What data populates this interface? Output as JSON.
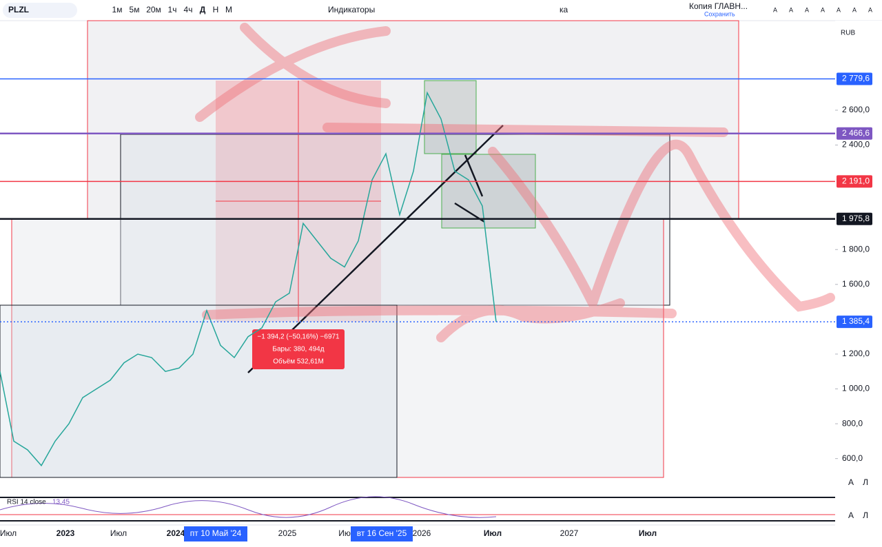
{
  "toolbar": {
    "symbol": "PLZL",
    "intervals": [
      "1м",
      "5м",
      "20м",
      "1ч",
      "4ч",
      "Д",
      "Н",
      "М"
    ],
    "indicators": "Индикаторы",
    "tool_tail": "ка",
    "layout_name": "Копия ГЛАВН...",
    "save": "Сохранить",
    "font_buttons": [
      "A",
      "A",
      "A",
      "A",
      "A",
      "A",
      "A"
    ]
  },
  "chart": {
    "currency": "RUB",
    "ylim": [
      393,
      3114
    ],
    "yticks": [
      {
        "value": 600,
        "label": "600,0"
      },
      {
        "value": 800,
        "label": "800,0"
      },
      {
        "value": 1000,
        "label": "1 000,0"
      },
      {
        "value": 1200,
        "label": "1 200,0"
      },
      {
        "value": 1600,
        "label": "1 600,0"
      },
      {
        "value": 1800,
        "label": "1 800,0"
      },
      {
        "value": 2400,
        "label": "2 400,0"
      },
      {
        "value": 2600,
        "label": "2 600,0"
      }
    ],
    "price_tags": [
      {
        "value": 2779.6,
        "label": "2 779,6",
        "color": "#2962ff"
      },
      {
        "value": 2466.6,
        "label": "2 466,6",
        "color": "#7e57c2"
      },
      {
        "value": 2191,
        "label": "2 191,0",
        "color": "#f23645"
      },
      {
        "value": 1975.8,
        "label": "1 975,8",
        "color": "#131722"
      },
      {
        "value": 1385.4,
        "label": "1 385,4",
        "color": "#2962ff"
      }
    ],
    "series": {
      "color": "#26a69a",
      "values": [
        1100,
        700,
        650,
        560,
        700,
        800,
        950,
        1000,
        1050,
        1150,
        1200,
        1180,
        1100,
        1120,
        1200,
        1450,
        1250,
        1180,
        1300,
        1350,
        1500,
        1550,
        1950,
        1850,
        1750,
        1700,
        1850,
        2200,
        2350,
        2000,
        2250,
        2700,
        2550,
        2250,
        2200,
        2050,
        1385.4
      ]
    },
    "tooltip": {
      "change": "−1 394,2 (−50,16%) −6971",
      "bars": "Бары: 380, 494д",
      "volume": "Объём 532,61M"
    },
    "time_labels": [
      "Июл",
      "2023",
      "Июл",
      "2024",
      "2025",
      "Ию",
      "2026",
      "Июл",
      "2027",
      "Июл"
    ],
    "date_badges": [
      "пт 10 Май '24",
      "вт 16 Сен '25"
    ],
    "rsi": {
      "label": "RSI 14 close",
      "value": "13,45"
    },
    "side_buttons": [
      "A",
      "Л"
    ]
  }
}
